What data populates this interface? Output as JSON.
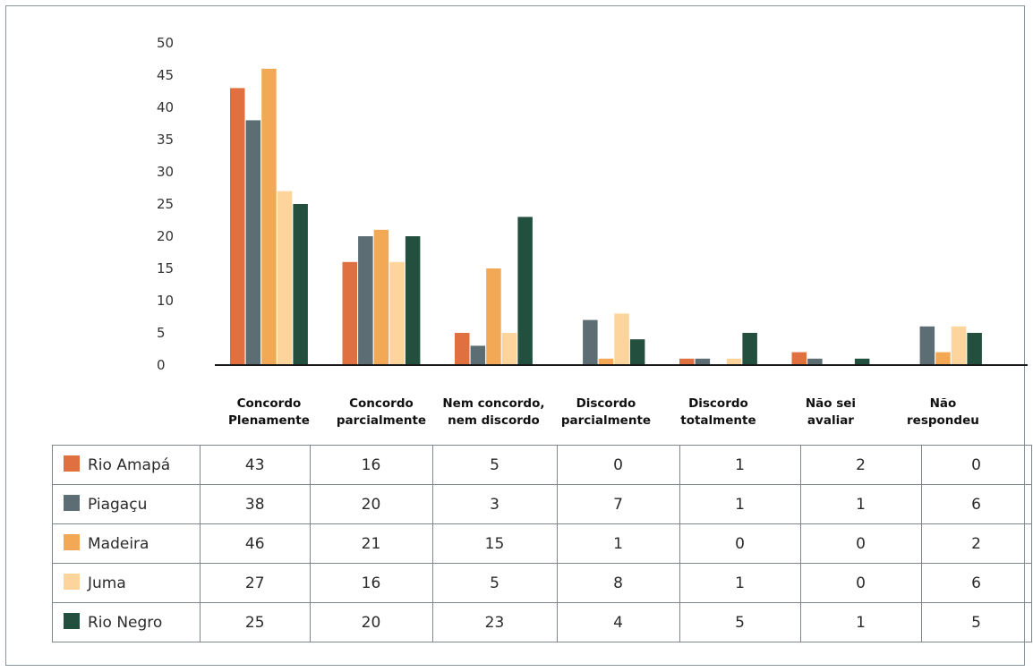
{
  "chart_data": {
    "type": "bar",
    "categories": [
      "Concordo Plenamente",
      "Concordo parcialmente",
      "Nem concordo, nem discordo",
      "Discordo parcialmente",
      "Discordo totalmente",
      "Não sei avaliar",
      "Não respondeu"
    ],
    "category_lines": [
      [
        "Concordo",
        "Plenamente"
      ],
      [
        "Concordo",
        "parcialmente"
      ],
      [
        "Nem concordo,",
        "nem discordo"
      ],
      [
        "Discordo",
        "parcialmente"
      ],
      [
        "Discordo",
        "totalmente"
      ],
      [
        "Não sei",
        "avaliar"
      ],
      [
        "Não",
        "respondeu"
      ]
    ],
    "series": [
      {
        "name": "Rio Amapá",
        "color": "#e0703f",
        "values": [
          43,
          16,
          5,
          0,
          1,
          2,
          0
        ]
      },
      {
        "name": "Piagaçu",
        "color": "#5c6e73",
        "values": [
          38,
          20,
          3,
          7,
          1,
          1,
          6
        ]
      },
      {
        "name": "Madeira",
        "color": "#f2a854",
        "values": [
          46,
          21,
          15,
          1,
          0,
          0,
          2
        ]
      },
      {
        "name": "Juma",
        "color": "#fdd49b",
        "values": [
          27,
          16,
          5,
          8,
          1,
          0,
          6
        ]
      },
      {
        "name": "Rio Negro",
        "color": "#234f3f",
        "values": [
          25,
          20,
          23,
          4,
          5,
          1,
          5
        ]
      }
    ],
    "ylim": [
      0,
      50
    ],
    "yticks": [
      0,
      5,
      10,
      15,
      20,
      25,
      30,
      35,
      40,
      45,
      50
    ],
    "grid": false,
    "legend": "table below chart",
    "title": "",
    "xlabel": "",
    "ylabel": ""
  }
}
